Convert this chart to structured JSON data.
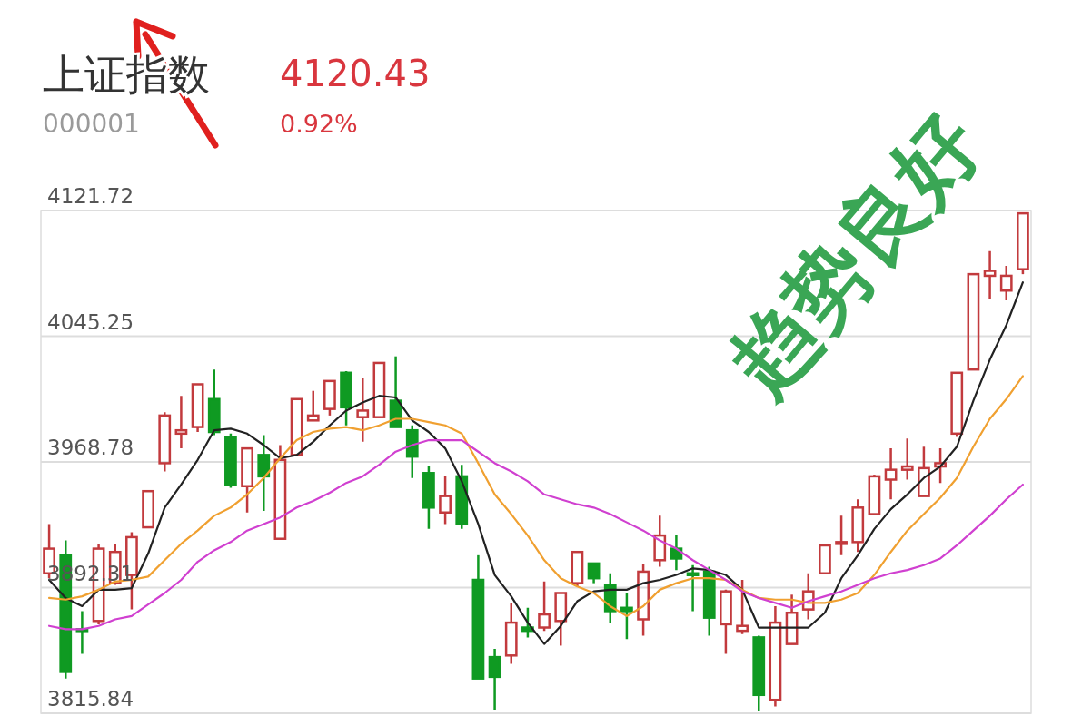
{
  "chart_data": {
    "type": "candlestick",
    "title": "上证指数",
    "subtitle": "000001",
    "annotations": [
      "4120.43",
      "0.92%",
      "趋势良好"
    ],
    "categories": [
      null,
      null,
      null,
      null,
      null,
      null,
      null,
      null,
      null,
      null,
      null,
      null,
      null,
      null,
      null,
      null,
      null,
      null,
      null,
      null,
      null,
      null,
      null,
      null,
      null,
      null,
      null,
      null,
      null,
      null,
      null,
      null,
      null,
      null,
      null,
      null,
      null,
      null,
      null,
      null,
      null,
      null,
      null,
      null,
      null,
      null,
      null,
      null,
      null,
      null,
      null,
      null,
      null,
      null,
      null,
      null,
      null,
      null,
      null,
      null
    ],
    "ohlc": [
      [
        3901,
        3931,
        3898,
        3916
      ],
      [
        3912,
        3921,
        3837,
        3841
      ],
      [
        3867,
        3878,
        3852,
        3866
      ],
      [
        3872,
        3919,
        3870,
        3916
      ],
      [
        3895,
        3919,
        3894,
        3914
      ],
      [
        3900,
        3926,
        3879,
        3923
      ],
      [
        3929,
        3951,
        3929,
        3951
      ],
      [
        3968,
        3999,
        3963,
        3997
      ],
      [
        3986,
        4009,
        3977,
        3988
      ],
      [
        3990,
        4016,
        3987,
        4016
      ],
      [
        4007,
        4025,
        3985,
        3987
      ],
      [
        3984,
        3986,
        3953,
        3955
      ],
      [
        3954,
        3977,
        3938,
        3977
      ],
      [
        3973,
        3985,
        3939,
        3960
      ],
      [
        3922,
        3979,
        3922,
        3970
      ],
      [
        3973,
        4007,
        3973,
        4007
      ],
      [
        3994,
        4012,
        3994,
        3997
      ],
      [
        4001,
        4018,
        3997,
        4018
      ],
      [
        4023,
        4024,
        3991,
        4002
      ],
      [
        3996,
        4020,
        3981,
        4000
      ],
      [
        3996,
        4029,
        3996,
        4029
      ],
      [
        4006,
        4033,
        3990,
        3990
      ],
      [
        3988,
        3991,
        3959,
        3972
      ],
      [
        3962,
        3966,
        3928,
        3941
      ],
      [
        3938,
        3960,
        3931,
        3948
      ],
      [
        3960,
        3967,
        3928,
        3931
      ],
      [
        3897,
        3912,
        3837,
        3837
      ],
      [
        3850,
        3855,
        3818,
        3838
      ],
      [
        3851,
        3883,
        3846,
        3871
      ],
      [
        3868,
        3880,
        3862,
        3866
      ],
      [
        3868,
        3896,
        3866,
        3876
      ],
      [
        3872,
        3889,
        3857,
        3889
      ],
      [
        3895,
        3914,
        3893,
        3914
      ],
      [
        3907,
        3907,
        3895,
        3898
      ],
      [
        3894,
        3901,
        3871,
        3878
      ],
      [
        3880,
        3889,
        3861,
        3878
      ],
      [
        3873,
        3907,
        3863,
        3902
      ],
      [
        3909,
        3936,
        3905,
        3924
      ],
      [
        3916,
        3924,
        3903,
        3910
      ],
      [
        3901,
        3906,
        3878,
        3900
      ],
      [
        3902,
        3905,
        3863,
        3874
      ],
      [
        3870,
        3891,
        3852,
        3890
      ],
      [
        3866,
        3897,
        3864,
        3869
      ],
      [
        3862,
        3863,
        3817,
        3827
      ],
      [
        3824,
        3881,
        3820,
        3871
      ],
      [
        3858,
        3888,
        3858,
        3877
      ],
      [
        3879,
        3901,
        3873,
        3890
      ],
      [
        3901,
        3918,
        3901,
        3918
      ],
      [
        3919,
        3936,
        3912,
        3920
      ],
      [
        3920,
        3946,
        3914,
        3941
      ],
      [
        3937,
        3961,
        3937,
        3960
      ],
      [
        3958,
        3977,
        3946,
        3964
      ],
      [
        3964,
        3983,
        3958,
        3966
      ],
      [
        3948,
        3978,
        3948,
        3965
      ],
      [
        3966,
        3977,
        3956,
        3968
      ],
      [
        3986,
        4023,
        3984,
        4023
      ],
      [
        4025,
        4083,
        4025,
        4083
      ],
      [
        4082,
        4097,
        4068,
        4085
      ],
      [
        4073,
        4088,
        4067,
        4082
      ],
      [
        4086,
        4120,
        4083,
        4120
      ]
    ],
    "colors": [
      "#c23a3d",
      "#0f9a22",
      "#0f9a22",
      "#c23a3d",
      "#c23a3d",
      "#c23a3d",
      "#c23a3d",
      "#c23a3d",
      "#c23a3d",
      "#c23a3d",
      "#0f9a22",
      "#0f9a22",
      "#c23a3d",
      "#0f9a22",
      "#c23a3d",
      "#c23a3d",
      "#c23a3d",
      "#c23a3d",
      "#0f9a22",
      "#c23a3d",
      "#c23a3d",
      "#0f9a22",
      "#0f9a22",
      "#0f9a22",
      "#c23a3d",
      "#0f9a22",
      "#0f9a22",
      "#0f9a22",
      "#c23a3d",
      "#0f9a22",
      "#c23a3d",
      "#c23a3d",
      "#c23a3d",
      "#0f9a22",
      "#0f9a22",
      "#0f9a22",
      "#c23a3d",
      "#c23a3d",
      "#0f9a22",
      "#0f9a22",
      "#0f9a22",
      "#c23a3d",
      "#c23a3d",
      "#0f9a22",
      "#c23a3d",
      "#c23a3d",
      "#c23a3d",
      "#c23a3d",
      "#c23a3d",
      "#c23a3d",
      "#c23a3d",
      "#c23a3d",
      "#c23a3d",
      "#c23a3d",
      "#c23a3d",
      "#c23a3d",
      "#c23a3d",
      "#c23a3d",
      "#c23a3d",
      "#c23a3d"
    ],
    "series": [
      {
        "type": "line",
        "color": "#222222",
        "values": [
          3897,
          3886,
          3881,
          3891,
          3891,
          3892,
          3913,
          3941,
          3955,
          3970,
          3988,
          3989,
          3986,
          3979,
          3971,
          3973,
          3981,
          3991,
          4000,
          4005,
          4009,
          4008,
          3994,
          3987,
          3977,
          3957,
          3931,
          3900,
          3887,
          3871,
          3858,
          3869,
          3884,
          3890,
          3891,
          3891,
          3895,
          3897,
          3900,
          3904,
          3903,
          3900,
          3891,
          3868,
          3868,
          3868,
          3868,
          3877,
          3898,
          3912,
          3928,
          3940,
          3949,
          3959,
          3966,
          3978,
          4006,
          4031,
          4052,
          4078
        ]
      },
      {
        "type": "line",
        "color": "#f0a030",
        "values": [
          3886,
          3885,
          3887,
          3891,
          3896,
          3897,
          3899,
          3909,
          3919,
          3927,
          3936,
          3941,
          3949,
          3959,
          3971,
          3982,
          3987,
          3989,
          3990,
          3988,
          3991,
          3995,
          3995,
          3993,
          3991,
          3986,
          3968,
          3949,
          3937,
          3924,
          3909,
          3898,
          3893,
          3889,
          3881,
          3875,
          3881,
          3891,
          3895,
          3898,
          3898,
          3897,
          3891,
          3886,
          3885,
          3885,
          3883,
          3883,
          3885,
          3889,
          3900,
          3914,
          3927,
          3937,
          3947,
          3959,
          3978,
          3995,
          4007,
          4021
        ]
      },
      {
        "type": "line",
        "color": "#d040d0",
        "values": [
          3869,
          3867,
          3867,
          3869,
          3873,
          3875,
          3882,
          3889,
          3897,
          3908,
          3915,
          3920,
          3927,
          3931,
          3935,
          3941,
          3945,
          3950,
          3956,
          3960,
          3967,
          3975,
          3979,
          3982,
          3982,
          3982,
          3975,
          3968,
          3963,
          3957,
          3949,
          3946,
          3943,
          3941,
          3937,
          3932,
          3927,
          3921,
          3916,
          3909,
          3903,
          3897,
          3890,
          3886,
          3883,
          3880,
          3884,
          3887,
          3890,
          3894,
          3898,
          3901,
          3903,
          3906,
          3910,
          3918,
          3927,
          3936,
          3946,
          3955
        ]
      }
    ],
    "ylim": [
      3815.84,
      4121.72
    ],
    "yticks": [
      4121.72,
      4045.25,
      3968.78,
      3892.31,
      3815.84
    ],
    "grid": "y"
  }
}
